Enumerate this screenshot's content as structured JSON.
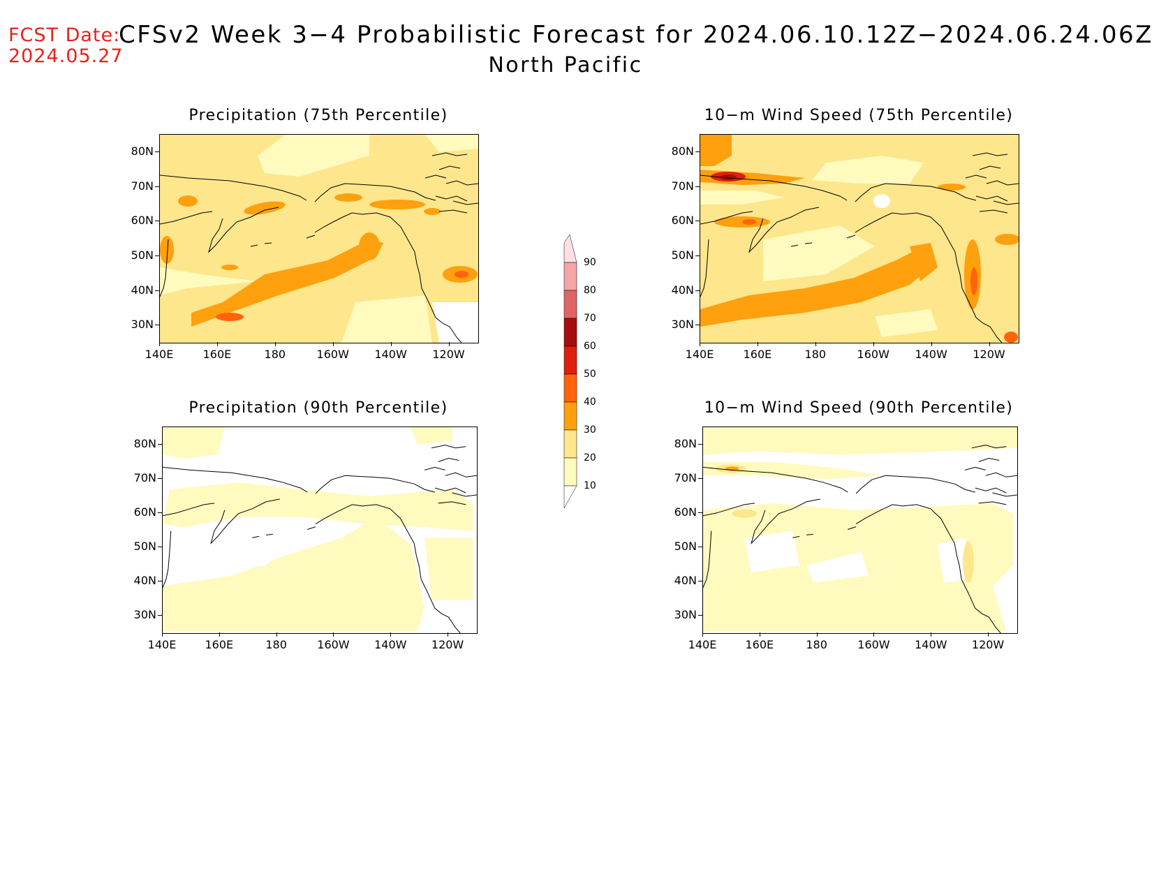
{
  "header": {
    "fcst_date_label": "FCST Date:",
    "fcst_date_value": "2024.05.27",
    "title": "CFSv2 Week 3−4 Probabilistic Forecast for 2024.06.10.12Z−2024.06.24.06Z",
    "subtitle": "North Pacific"
  },
  "axes": {
    "lat_ticks": [
      "80N",
      "70N",
      "60N",
      "50N",
      "40N",
      "30N"
    ],
    "lon_ticks": [
      "140E",
      "160E",
      "180",
      "160W",
      "140W",
      "120W"
    ]
  },
  "panels": [
    {
      "title": "Precipitation (75th Percentile)"
    },
    {
      "title": "10−m Wind Speed (75th Percentile)"
    },
    {
      "title": "Precipitation (90th Percentile)"
    },
    {
      "title": "10−m Wind Speed (90th Percentile)"
    }
  ],
  "colorbar": {
    "labels": [
      "90",
      "80",
      "70",
      "60",
      "50",
      "40",
      "30",
      "20",
      "10"
    ],
    "colors": [
      "#fde0e4",
      "#f4a6a6",
      "#de6565",
      "#a60e0e",
      "#e01e0e",
      "#ff640a",
      "#ffa00e",
      "#fde68c",
      "#fffabe"
    ]
  },
  "colors": {
    "level_10_20": "#fffabe",
    "level_20_30": "#fde68c",
    "level_30_40": "#ffa00e",
    "level_40_50": "#ff640a",
    "level_50_60": "#e01e0e",
    "level_60_70": "#a60e0e",
    "fcst_date_text": "#e8201c"
  }
}
